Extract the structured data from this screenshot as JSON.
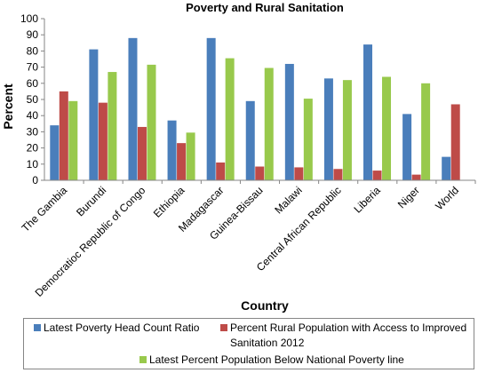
{
  "chart_data": {
    "type": "bar",
    "title": "Poverty and Rural Sanitation",
    "xlabel": "Country",
    "ylabel": "Percent",
    "ylim": [
      0,
      100
    ],
    "yticks": [
      0,
      10,
      20,
      30,
      40,
      50,
      60,
      70,
      80,
      90,
      100
    ],
    "grid": false,
    "legend_position": "bottom",
    "categories": [
      "The Gambia",
      "Burundi",
      "Democratioc Republic of Congo",
      "Ethiopia",
      "Madagascar",
      "Guinea-Bissau",
      "Malawi",
      "Central African Republic",
      "Liberia",
      "Niger",
      "World"
    ],
    "series": [
      {
        "name": "Latest Poverty Head Count Ratio",
        "color": "#4a7ebb",
        "values": [
          34,
          81,
          88,
          37,
          88,
          49,
          72,
          63,
          84,
          41,
          14.5
        ]
      },
      {
        "name": "Percent Rural Population with Access to Improved Sanitation 2012",
        "color": "#be4b48",
        "values": [
          55,
          48,
          33,
          23,
          11,
          8.5,
          8,
          7,
          6,
          3.5,
          47
        ]
      },
      {
        "name": "Latest Percent Population Below National Poverty line",
        "color": "#98c94c",
        "values": [
          49,
          67,
          71.5,
          29.5,
          75.5,
          69.5,
          50.5,
          62,
          64,
          60,
          null
        ]
      }
    ]
  },
  "legend": {
    "item1": "Latest Poverty Head Count Ratio",
    "item2_line1": "Percent Rural Population with Access to Improved",
    "item2_line2": "Sanitation 2012",
    "item3": "Latest Percent Population Below National Poverty line"
  }
}
